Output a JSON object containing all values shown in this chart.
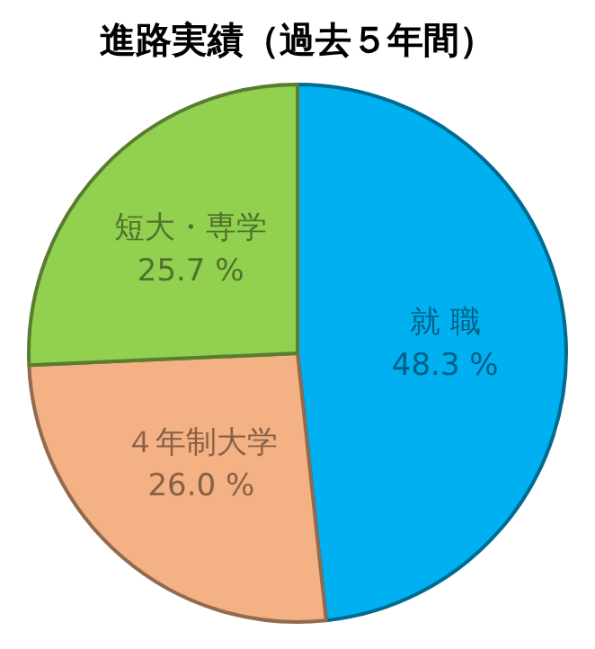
{
  "chart_data": {
    "type": "pie",
    "title": "進路実績（過去５年間）",
    "categories": [
      "就 職",
      "４年制大学",
      "短大・専学"
    ],
    "values": [
      48.3,
      26.0,
      25.7
    ],
    "colors": [
      "#00b0f0",
      "#f4b183",
      "#92d050"
    ],
    "value_labels": [
      "48.3 %",
      "26.0 %",
      "25.7 %"
    ],
    "legend": false
  }
}
